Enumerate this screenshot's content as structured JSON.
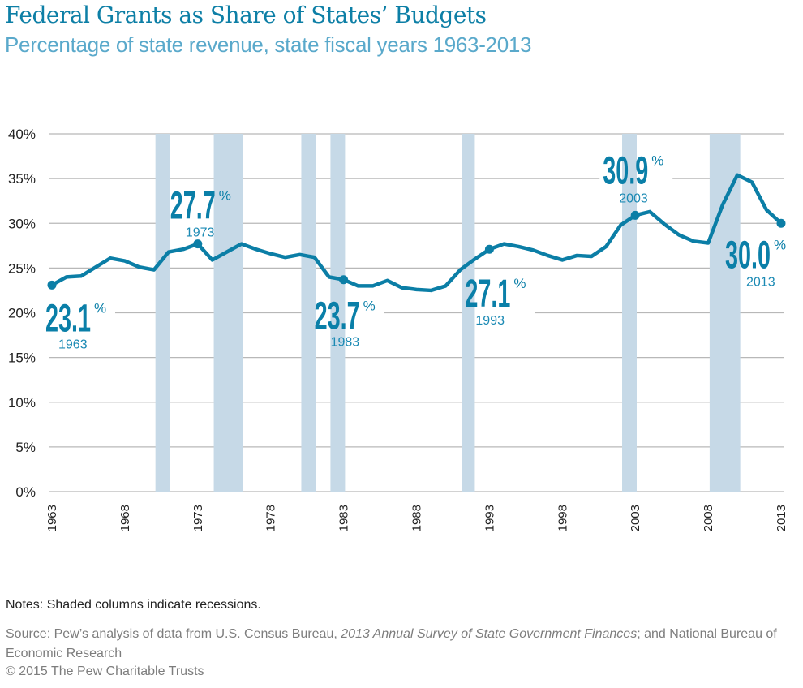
{
  "header": {
    "title": "Federal Grants as Share of States’ Budgets",
    "subtitle": "Percentage of state revenue, state fiscal years 1963-2013"
  },
  "chart_data": {
    "type": "line",
    "title": "Federal Grants as Share of States’ Budgets",
    "subtitle": "Percentage of state revenue, state fiscal years 1963-2013",
    "xlabel": "",
    "ylabel": "",
    "ylim": [
      0,
      40
    ],
    "xlim": [
      1963,
      2013
    ],
    "grid": true,
    "y_ticks": [
      0,
      5,
      10,
      15,
      20,
      25,
      30,
      35,
      40
    ],
    "y_tick_labels": [
      "0%",
      "5%",
      "10%",
      "15%",
      "20%",
      "25%",
      "30%",
      "35%",
      "40%"
    ],
    "x_ticks": [
      1963,
      1968,
      1973,
      1978,
      1983,
      1988,
      1993,
      1998,
      2003,
      2008,
      2013
    ],
    "x_tick_labels": [
      "1963",
      "1968",
      "1973",
      "1978",
      "1983",
      "1988",
      "1993",
      "1998",
      "2003",
      "2008",
      "2013"
    ],
    "colors": {
      "line": "#0b7ea6",
      "recession": "#c6d9e7",
      "grid": "#b8b8b8",
      "annotation": "#0a7fa8"
    },
    "series": [
      {
        "name": "Federal grants as share of state revenue",
        "x": [
          1963,
          1964,
          1965,
          1966,
          1967,
          1968,
          1969,
          1970,
          1971,
          1972,
          1973,
          1974,
          1975,
          1976,
          1977,
          1978,
          1979,
          1980,
          1981,
          1982,
          1983,
          1984,
          1985,
          1986,
          1987,
          1988,
          1989,
          1990,
          1991,
          1992,
          1993,
          1994,
          1995,
          1996,
          1997,
          1998,
          1999,
          2000,
          2001,
          2002,
          2003,
          2004,
          2005,
          2006,
          2007,
          2008,
          2009,
          2010,
          2011,
          2012,
          2013
        ],
        "values": [
          23.1,
          24.0,
          24.1,
          25.1,
          26.1,
          25.8,
          25.1,
          24.8,
          26.8,
          27.1,
          27.7,
          25.9,
          26.8,
          27.7,
          27.1,
          26.6,
          26.2,
          26.5,
          26.2,
          24.0,
          23.7,
          23.0,
          23.0,
          23.6,
          22.8,
          22.6,
          22.5,
          23.0,
          24.8,
          26.0,
          27.1,
          27.7,
          27.4,
          27.0,
          26.4,
          25.9,
          26.4,
          26.3,
          27.4,
          29.8,
          30.9,
          31.3,
          29.9,
          28.7,
          28.0,
          27.8,
          32.1,
          35.4,
          34.6,
          31.5,
          30.0
        ]
      }
    ],
    "recessions": [
      {
        "start": 1970.1,
        "end": 1971.1
      },
      {
        "start": 1974.1,
        "end": 1976.1
      },
      {
        "start": 1980.1,
        "end": 1981.1
      },
      {
        "start": 1982.1,
        "end": 1983.1
      },
      {
        "start": 1991.1,
        "end": 1992.0
      },
      {
        "start": 2002.1,
        "end": 2003.1
      },
      {
        "start": 2008.1,
        "end": 2010.2
      }
    ],
    "annotations": [
      {
        "year": 1963,
        "value": "23.1",
        "pct": "%",
        "label_year": "1963",
        "position": "below"
      },
      {
        "year": 1973,
        "value": "27.7",
        "pct": "%",
        "label_year": "1973",
        "position": "above"
      },
      {
        "year": 1983,
        "value": "23.7",
        "pct": "%",
        "label_year": "1983",
        "position": "below"
      },
      {
        "year": 1993,
        "value": "27.1",
        "pct": "%",
        "label_year": "1993",
        "position": "below"
      },
      {
        "year": 2003,
        "value": "30.9",
        "pct": "%",
        "label_year": "2003",
        "position": "above"
      },
      {
        "year": 2013,
        "value": "30.0",
        "pct": "%",
        "label_year": "2013",
        "position": "below-left"
      }
    ]
  },
  "footer": {
    "notes": "Notes: Shaded columns indicate recessions.",
    "source_prefix": "Source: Pew’s analysis of data from U.S. Census Bureau, ",
    "source_italic": "2013 Annual Survey of State Government Finances",
    "source_suffix": "; and National Bureau of Economic Research",
    "copyright": "© 2015 The Pew Charitable Trusts"
  }
}
